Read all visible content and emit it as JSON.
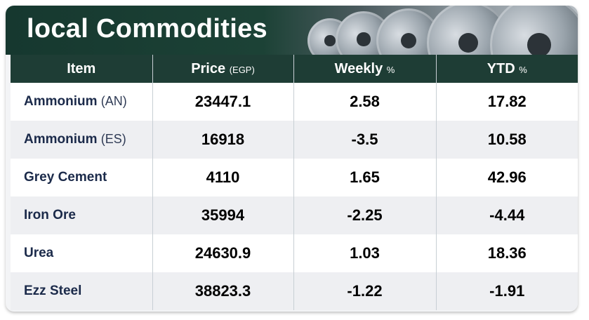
{
  "title": "local Commodities",
  "headers": {
    "item": "Item",
    "price": "Price",
    "price_unit": "(EGP)",
    "weekly": "Weekly",
    "weekly_unit": "%",
    "ytd": "YTD",
    "ytd_unit": "%"
  },
  "rows": [
    {
      "name": "Ammonium",
      "qualifier": "(AN)",
      "price": "23447.1",
      "weekly": "2.58",
      "ytd": "17.82"
    },
    {
      "name": "Ammonium",
      "qualifier": "(ES)",
      "price": "16918",
      "weekly": "-3.5",
      "ytd": "10.58"
    },
    {
      "name": "Grey Cement",
      "qualifier": "",
      "price": "4110",
      "weekly": "1.65",
      "ytd": "42.96"
    },
    {
      "name": "Iron Ore",
      "qualifier": "",
      "price": "35994",
      "weekly": "-2.25",
      "ytd": "-4.44"
    },
    {
      "name": "Urea",
      "qualifier": "",
      "price": "24630.9",
      "weekly": "1.03",
      "ytd": "18.36"
    },
    {
      "name": "Ezz Steel",
      "qualifier": "",
      "price": "38823.3",
      "weekly": "-1.22",
      "ytd": "-1.91"
    }
  ]
}
